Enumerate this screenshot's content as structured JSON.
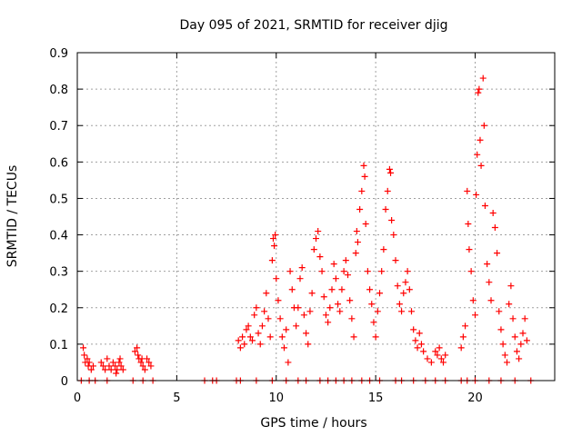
{
  "chart_data": {
    "type": "scatter",
    "title": "Day 095 of 2021, SRMTID for receiver djig",
    "xlabel": "GPS time / hours",
    "ylabel": "SRMTID / TECUs",
    "xlim": [
      0,
      24
    ],
    "ylim": [
      0,
      0.9
    ],
    "xticks": [
      0,
      5,
      10,
      15,
      20
    ],
    "xtick_labels": [
      "0",
      "5",
      "10",
      "15",
      "20"
    ],
    "yticks": [
      0,
      0.1,
      0.2,
      0.3,
      0.4,
      0.5,
      0.6,
      0.7,
      0.8,
      0.9
    ],
    "ytick_labels": [
      "0",
      "0.1",
      "0.2",
      "0.3",
      "0.4",
      "0.5",
      "0.6",
      "0.7",
      "0.8",
      "0.9"
    ],
    "grid": true,
    "series": [
      {
        "name": "SRMTID",
        "color": "#ff0000",
        "marker": "plus",
        "points": [
          [
            0.2,
            0.0
          ],
          [
            0.6,
            0.0
          ],
          [
            0.9,
            0.0
          ],
          [
            1.5,
            0.0
          ],
          [
            2.8,
            0.0
          ],
          [
            3.3,
            0.0
          ],
          [
            3.8,
            0.0
          ],
          [
            6.4,
            0.0
          ],
          [
            6.8,
            0.0
          ],
          [
            7.0,
            0.0
          ],
          [
            8.0,
            0.0
          ],
          [
            8.2,
            0.0
          ],
          [
            9.0,
            0.0
          ],
          [
            9.8,
            0.0
          ],
          [
            10.5,
            0.0
          ],
          [
            11.1,
            0.0
          ],
          [
            11.5,
            0.0
          ],
          [
            12.2,
            0.0
          ],
          [
            12.6,
            0.0
          ],
          [
            13.0,
            0.0
          ],
          [
            13.4,
            0.0
          ],
          [
            13.8,
            0.0
          ],
          [
            14.3,
            0.0
          ],
          [
            14.7,
            0.0
          ],
          [
            15.2,
            0.0
          ],
          [
            16.0,
            0.0
          ],
          [
            16.3,
            0.0
          ],
          [
            16.9,
            0.0
          ],
          [
            17.5,
            0.0
          ],
          [
            18.0,
            0.0
          ],
          [
            18.5,
            0.0
          ],
          [
            19.3,
            0.0
          ],
          [
            19.6,
            0.0
          ],
          [
            20.0,
            0.0
          ],
          [
            20.7,
            0.0
          ],
          [
            21.3,
            0.0
          ],
          [
            22.0,
            0.0
          ],
          [
            22.8,
            0.0
          ],
          [
            0.3,
            0.09
          ],
          [
            0.35,
            0.07
          ],
          [
            0.4,
            0.05
          ],
          [
            0.5,
            0.06
          ],
          [
            0.55,
            0.04
          ],
          [
            0.6,
            0.05
          ],
          [
            0.7,
            0.03
          ],
          [
            0.8,
            0.04
          ],
          [
            1.2,
            0.05
          ],
          [
            1.3,
            0.04
          ],
          [
            1.4,
            0.03
          ],
          [
            1.5,
            0.06
          ],
          [
            1.6,
            0.04
          ],
          [
            1.7,
            0.03
          ],
          [
            1.8,
            0.05
          ],
          [
            1.9,
            0.04
          ],
          [
            2.0,
            0.03
          ],
          [
            2.1,
            0.05
          ],
          [
            2.2,
            0.04
          ],
          [
            2.3,
            0.03
          ],
          [
            2.15,
            0.06
          ],
          [
            1.95,
            0.02
          ],
          [
            2.9,
            0.08
          ],
          [
            3.0,
            0.09
          ],
          [
            3.1,
            0.06
          ],
          [
            3.2,
            0.05
          ],
          [
            3.3,
            0.04
          ],
          [
            3.4,
            0.03
          ],
          [
            3.5,
            0.06
          ],
          [
            3.6,
            0.05
          ],
          [
            3.7,
            0.04
          ],
          [
            3.05,
            0.07
          ],
          [
            3.25,
            0.06
          ],
          [
            8.1,
            0.11
          ],
          [
            8.2,
            0.09
          ],
          [
            8.3,
            0.12
          ],
          [
            8.4,
            0.1
          ],
          [
            8.5,
            0.14
          ],
          [
            8.6,
            0.15
          ],
          [
            8.7,
            0.12
          ],
          [
            8.8,
            0.11
          ],
          [
            8.9,
            0.18
          ],
          [
            9.0,
            0.2
          ],
          [
            9.1,
            0.13
          ],
          [
            9.2,
            0.1
          ],
          [
            9.3,
            0.15
          ],
          [
            9.4,
            0.19
          ],
          [
            9.5,
            0.24
          ],
          [
            9.6,
            0.17
          ],
          [
            9.7,
            0.12
          ],
          [
            9.8,
            0.33
          ],
          [
            9.85,
            0.39
          ],
          [
            9.9,
            0.37
          ],
          [
            9.95,
            0.4
          ],
          [
            10.0,
            0.28
          ],
          [
            10.1,
            0.22
          ],
          [
            10.2,
            0.17
          ],
          [
            10.3,
            0.12
          ],
          [
            10.4,
            0.09
          ],
          [
            10.5,
            0.14
          ],
          [
            10.6,
            0.05
          ],
          [
            10.7,
            0.3
          ],
          [
            10.8,
            0.25
          ],
          [
            10.9,
            0.2
          ],
          [
            11.0,
            0.15
          ],
          [
            11.1,
            0.2
          ],
          [
            11.2,
            0.28
          ],
          [
            11.3,
            0.31
          ],
          [
            11.4,
            0.18
          ],
          [
            11.5,
            0.13
          ],
          [
            11.6,
            0.1
          ],
          [
            11.7,
            0.19
          ],
          [
            11.8,
            0.24
          ],
          [
            11.9,
            0.36
          ],
          [
            12.0,
            0.39
          ],
          [
            12.1,
            0.41
          ],
          [
            12.2,
            0.34
          ],
          [
            12.3,
            0.3
          ],
          [
            12.4,
            0.23
          ],
          [
            12.5,
            0.18
          ],
          [
            12.6,
            0.16
          ],
          [
            12.7,
            0.2
          ],
          [
            12.8,
            0.25
          ],
          [
            12.9,
            0.32
          ],
          [
            13.0,
            0.28
          ],
          [
            13.1,
            0.21
          ],
          [
            13.2,
            0.19
          ],
          [
            13.3,
            0.25
          ],
          [
            13.4,
            0.3
          ],
          [
            13.5,
            0.33
          ],
          [
            13.6,
            0.29
          ],
          [
            13.7,
            0.22
          ],
          [
            13.8,
            0.17
          ],
          [
            13.9,
            0.12
          ],
          [
            14.0,
            0.35
          ],
          [
            14.05,
            0.41
          ],
          [
            14.1,
            0.38
          ],
          [
            14.2,
            0.47
          ],
          [
            14.3,
            0.52
          ],
          [
            14.4,
            0.59
          ],
          [
            14.45,
            0.56
          ],
          [
            14.5,
            0.43
          ],
          [
            14.6,
            0.3
          ],
          [
            14.7,
            0.25
          ],
          [
            14.8,
            0.21
          ],
          [
            14.9,
            0.16
          ],
          [
            15.0,
            0.12
          ],
          [
            15.1,
            0.19
          ],
          [
            15.2,
            0.24
          ],
          [
            15.3,
            0.3
          ],
          [
            15.4,
            0.36
          ],
          [
            15.5,
            0.47
          ],
          [
            15.6,
            0.52
          ],
          [
            15.7,
            0.58
          ],
          [
            15.75,
            0.57
          ],
          [
            15.8,
            0.44
          ],
          [
            15.9,
            0.4
          ],
          [
            16.0,
            0.33
          ],
          [
            16.1,
            0.26
          ],
          [
            16.2,
            0.21
          ],
          [
            16.3,
            0.19
          ],
          [
            16.4,
            0.24
          ],
          [
            16.5,
            0.27
          ],
          [
            16.6,
            0.3
          ],
          [
            16.7,
            0.25
          ],
          [
            16.8,
            0.19
          ],
          [
            16.9,
            0.14
          ],
          [
            17.0,
            0.11
          ],
          [
            17.1,
            0.09
          ],
          [
            17.2,
            0.13
          ],
          [
            17.3,
            0.1
          ],
          [
            17.4,
            0.08
          ],
          [
            17.6,
            0.06
          ],
          [
            17.8,
            0.05
          ],
          [
            18.0,
            0.08
          ],
          [
            18.1,
            0.07
          ],
          [
            18.2,
            0.09
          ],
          [
            18.3,
            0.06
          ],
          [
            18.4,
            0.05
          ],
          [
            18.5,
            0.07
          ],
          [
            19.3,
            0.09
          ],
          [
            19.4,
            0.12
          ],
          [
            19.5,
            0.15
          ],
          [
            19.6,
            0.52
          ],
          [
            19.65,
            0.43
          ],
          [
            19.7,
            0.36
          ],
          [
            19.8,
            0.3
          ],
          [
            19.9,
            0.22
          ],
          [
            20.0,
            0.18
          ],
          [
            20.05,
            0.51
          ],
          [
            20.1,
            0.62
          ],
          [
            20.15,
            0.79
          ],
          [
            20.2,
            0.8
          ],
          [
            20.25,
            0.66
          ],
          [
            20.3,
            0.59
          ],
          [
            20.4,
            0.83
          ],
          [
            20.45,
            0.7
          ],
          [
            20.5,
            0.48
          ],
          [
            20.6,
            0.32
          ],
          [
            20.7,
            0.27
          ],
          [
            20.8,
            0.22
          ],
          [
            20.9,
            0.46
          ],
          [
            21.0,
            0.42
          ],
          [
            21.1,
            0.35
          ],
          [
            21.2,
            0.19
          ],
          [
            21.3,
            0.14
          ],
          [
            21.4,
            0.1
          ],
          [
            21.5,
            0.07
          ],
          [
            21.6,
            0.05
          ],
          [
            21.7,
            0.21
          ],
          [
            21.8,
            0.26
          ],
          [
            21.9,
            0.17
          ],
          [
            22.0,
            0.12
          ],
          [
            22.1,
            0.08
          ],
          [
            22.2,
            0.06
          ],
          [
            22.3,
            0.1
          ],
          [
            22.4,
            0.13
          ],
          [
            22.5,
            0.17
          ],
          [
            22.6,
            0.11
          ]
        ]
      }
    ]
  }
}
